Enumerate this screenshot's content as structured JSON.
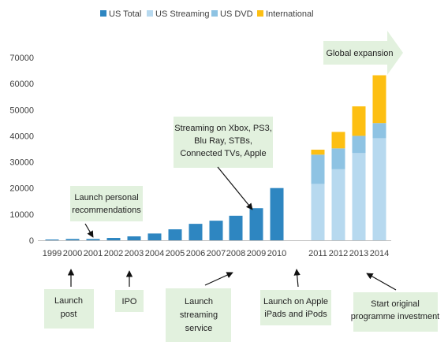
{
  "chart_data": {
    "type": "bar",
    "stacked": true,
    "categories": [
      "1999",
      "2000",
      "2001",
      "2002",
      "2003",
      "2004",
      "2005",
      "2006",
      "2007",
      "2008",
      "2009",
      "2010",
      "2011",
      "2012",
      "2013",
      "2014"
    ],
    "ylim": [
      0,
      70000
    ],
    "yticks": [
      0,
      10000,
      20000,
      30000,
      40000,
      50000,
      60000,
      70000
    ],
    "grid": false,
    "legend_position": "top",
    "series": [
      {
        "name": "US Total",
        "color": "#2e86c1",
        "values": [
          300,
          500,
          500,
          900,
          1500,
          2600,
          4200,
          6300,
          7500,
          9400,
          12300,
          20000,
          null,
          null,
          null,
          null
        ]
      },
      {
        "name": "US Streaming",
        "color": "#b7d9ef",
        "values": [
          null,
          null,
          null,
          null,
          null,
          null,
          null,
          null,
          null,
          null,
          null,
          null,
          21600,
          27200,
          33400,
          39100
        ]
      },
      {
        "name": "US DVD",
        "color": "#8ec3e3",
        "values": [
          null,
          null,
          null,
          null,
          null,
          null,
          null,
          null,
          null,
          null,
          null,
          null,
          11200,
          8000,
          6600,
          5800
        ]
      },
      {
        "name": "International",
        "color": "#fdbf12",
        "values": [
          null,
          null,
          null,
          null,
          null,
          null,
          null,
          null,
          null,
          null,
          null,
          null,
          1900,
          6300,
          11300,
          18300
        ]
      }
    ],
    "annotations": [
      {
        "text": [
          "Launch personal",
          "recommendations"
        ],
        "points_to": "2001"
      },
      {
        "text": [
          "Streaming on Xbox, PS3,",
          "Blu Ray, STBs,",
          "Connected TVs, Apple"
        ],
        "points_to": "2009"
      },
      {
        "text": [
          "Global expansion"
        ],
        "points_to": "2011-2014"
      },
      {
        "text": [
          "Launch",
          "post"
        ],
        "points_to": "2000"
      },
      {
        "text": [
          "IPO"
        ],
        "points_to": "2002"
      },
      {
        "text": [
          "Launch",
          "streaming",
          "service"
        ],
        "points_to": "2007"
      },
      {
        "text": [
          "Launch on Apple",
          "iPads and iPods"
        ],
        "points_to": "2010"
      },
      {
        "text": [
          "Start original",
          "programme investment"
        ],
        "points_to": "2013"
      }
    ]
  }
}
